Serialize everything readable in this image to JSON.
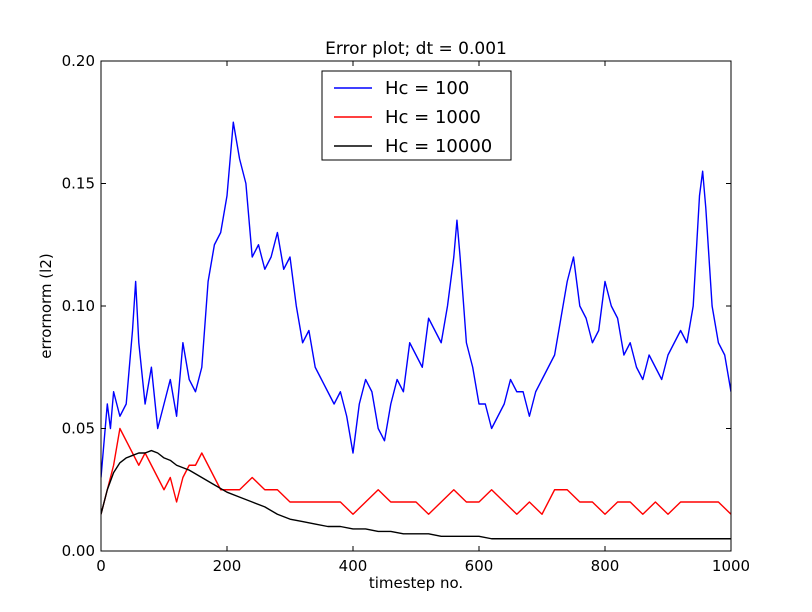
{
  "chart_data": {
    "type": "line",
    "title": "Error plot; dt = 0.001",
    "xlabel": "timestep no.",
    "ylabel": "errornorm (l2)",
    "xlim": [
      0,
      1000
    ],
    "ylim": [
      0,
      0.2
    ],
    "x_ticks": [
      0,
      200,
      400,
      600,
      800,
      1000
    ],
    "x_tick_labels": [
      "0",
      "200",
      "400",
      "600",
      "800",
      "1000"
    ],
    "y_ticks": [
      0,
      0.05,
      0.1,
      0.15,
      0.2
    ],
    "y_tick_labels": [
      "0.00",
      "0.05",
      "0.10",
      "0.15",
      "0.20"
    ],
    "grid": false,
    "legend_position": "upper center",
    "series": [
      {
        "name": "Hc = 100",
        "color": "#0000ff",
        "x": [
          0,
          10,
          15,
          20,
          30,
          40,
          50,
          55,
          60,
          70,
          80,
          90,
          100,
          110,
          120,
          130,
          140,
          150,
          160,
          170,
          180,
          190,
          200,
          205,
          210,
          220,
          230,
          240,
          250,
          260,
          270,
          280,
          290,
          300,
          310,
          320,
          330,
          340,
          350,
          360,
          370,
          380,
          390,
          400,
          410,
          420,
          430,
          440,
          450,
          460,
          470,
          480,
          490,
          500,
          510,
          520,
          530,
          540,
          550,
          560,
          565,
          570,
          580,
          590,
          600,
          610,
          620,
          630,
          640,
          650,
          660,
          670,
          680,
          690,
          700,
          710,
          720,
          730,
          740,
          750,
          760,
          770,
          780,
          790,
          800,
          810,
          820,
          830,
          840,
          850,
          860,
          870,
          880,
          890,
          900,
          910,
          920,
          930,
          940,
          950,
          955,
          960,
          970,
          980,
          990,
          1000
        ],
        "values": [
          0.03,
          0.06,
          0.05,
          0.065,
          0.055,
          0.06,
          0.09,
          0.11,
          0.085,
          0.06,
          0.075,
          0.05,
          0.06,
          0.07,
          0.055,
          0.085,
          0.07,
          0.065,
          0.075,
          0.11,
          0.125,
          0.13,
          0.145,
          0.16,
          0.175,
          0.16,
          0.15,
          0.12,
          0.125,
          0.115,
          0.12,
          0.13,
          0.115,
          0.12,
          0.1,
          0.085,
          0.09,
          0.075,
          0.07,
          0.065,
          0.06,
          0.065,
          0.055,
          0.04,
          0.06,
          0.07,
          0.065,
          0.05,
          0.045,
          0.06,
          0.07,
          0.065,
          0.085,
          0.08,
          0.075,
          0.095,
          0.09,
          0.085,
          0.1,
          0.12,
          0.135,
          0.12,
          0.085,
          0.075,
          0.06,
          0.06,
          0.05,
          0.055,
          0.06,
          0.07,
          0.065,
          0.065,
          0.055,
          0.065,
          0.07,
          0.075,
          0.08,
          0.095,
          0.11,
          0.12,
          0.1,
          0.095,
          0.085,
          0.09,
          0.11,
          0.1,
          0.095,
          0.08,
          0.085,
          0.075,
          0.07,
          0.08,
          0.075,
          0.07,
          0.08,
          0.085,
          0.09,
          0.085,
          0.1,
          0.145,
          0.155,
          0.14,
          0.1,
          0.085,
          0.08,
          0.065
        ]
      },
      {
        "name": "Hc = 1000",
        "color": "#ff0000",
        "x": [
          0,
          10,
          20,
          30,
          40,
          50,
          60,
          70,
          80,
          90,
          100,
          110,
          120,
          130,
          140,
          150,
          160,
          170,
          180,
          190,
          200,
          220,
          240,
          260,
          280,
          300,
          320,
          340,
          360,
          380,
          400,
          420,
          440,
          460,
          480,
          500,
          520,
          540,
          560,
          580,
          600,
          620,
          640,
          660,
          680,
          700,
          720,
          740,
          760,
          780,
          800,
          820,
          840,
          860,
          880,
          900,
          920,
          940,
          960,
          980,
          1000
        ],
        "values": [
          0.015,
          0.025,
          0.035,
          0.05,
          0.045,
          0.04,
          0.035,
          0.04,
          0.035,
          0.03,
          0.025,
          0.03,
          0.02,
          0.03,
          0.035,
          0.035,
          0.04,
          0.035,
          0.03,
          0.025,
          0.025,
          0.025,
          0.03,
          0.025,
          0.025,
          0.02,
          0.02,
          0.02,
          0.02,
          0.02,
          0.015,
          0.02,
          0.025,
          0.02,
          0.02,
          0.02,
          0.015,
          0.02,
          0.025,
          0.02,
          0.02,
          0.025,
          0.02,
          0.015,
          0.02,
          0.015,
          0.025,
          0.025,
          0.02,
          0.02,
          0.015,
          0.02,
          0.02,
          0.015,
          0.02,
          0.015,
          0.02,
          0.02,
          0.02,
          0.02,
          0.015
        ]
      },
      {
        "name": "Hc = 10000",
        "color": "#000000",
        "x": [
          0,
          10,
          20,
          30,
          40,
          50,
          60,
          70,
          80,
          90,
          100,
          110,
          120,
          140,
          160,
          180,
          200,
          220,
          240,
          260,
          280,
          300,
          320,
          340,
          360,
          380,
          400,
          420,
          440,
          460,
          480,
          500,
          520,
          540,
          560,
          580,
          600,
          620,
          640,
          660,
          680,
          700,
          720,
          740,
          760,
          780,
          800,
          820,
          840,
          860,
          880,
          900,
          920,
          940,
          960,
          980,
          1000
        ],
        "values": [
          0.015,
          0.025,
          0.032,
          0.036,
          0.038,
          0.039,
          0.04,
          0.04,
          0.041,
          0.04,
          0.038,
          0.037,
          0.035,
          0.033,
          0.03,
          0.027,
          0.024,
          0.022,
          0.02,
          0.018,
          0.015,
          0.013,
          0.012,
          0.011,
          0.01,
          0.01,
          0.009,
          0.009,
          0.008,
          0.008,
          0.007,
          0.007,
          0.007,
          0.006,
          0.006,
          0.006,
          0.006,
          0.005,
          0.005,
          0.005,
          0.005,
          0.005,
          0.005,
          0.005,
          0.005,
          0.005,
          0.005,
          0.005,
          0.005,
          0.005,
          0.005,
          0.005,
          0.005,
          0.005,
          0.005,
          0.005,
          0.005
        ]
      }
    ]
  }
}
